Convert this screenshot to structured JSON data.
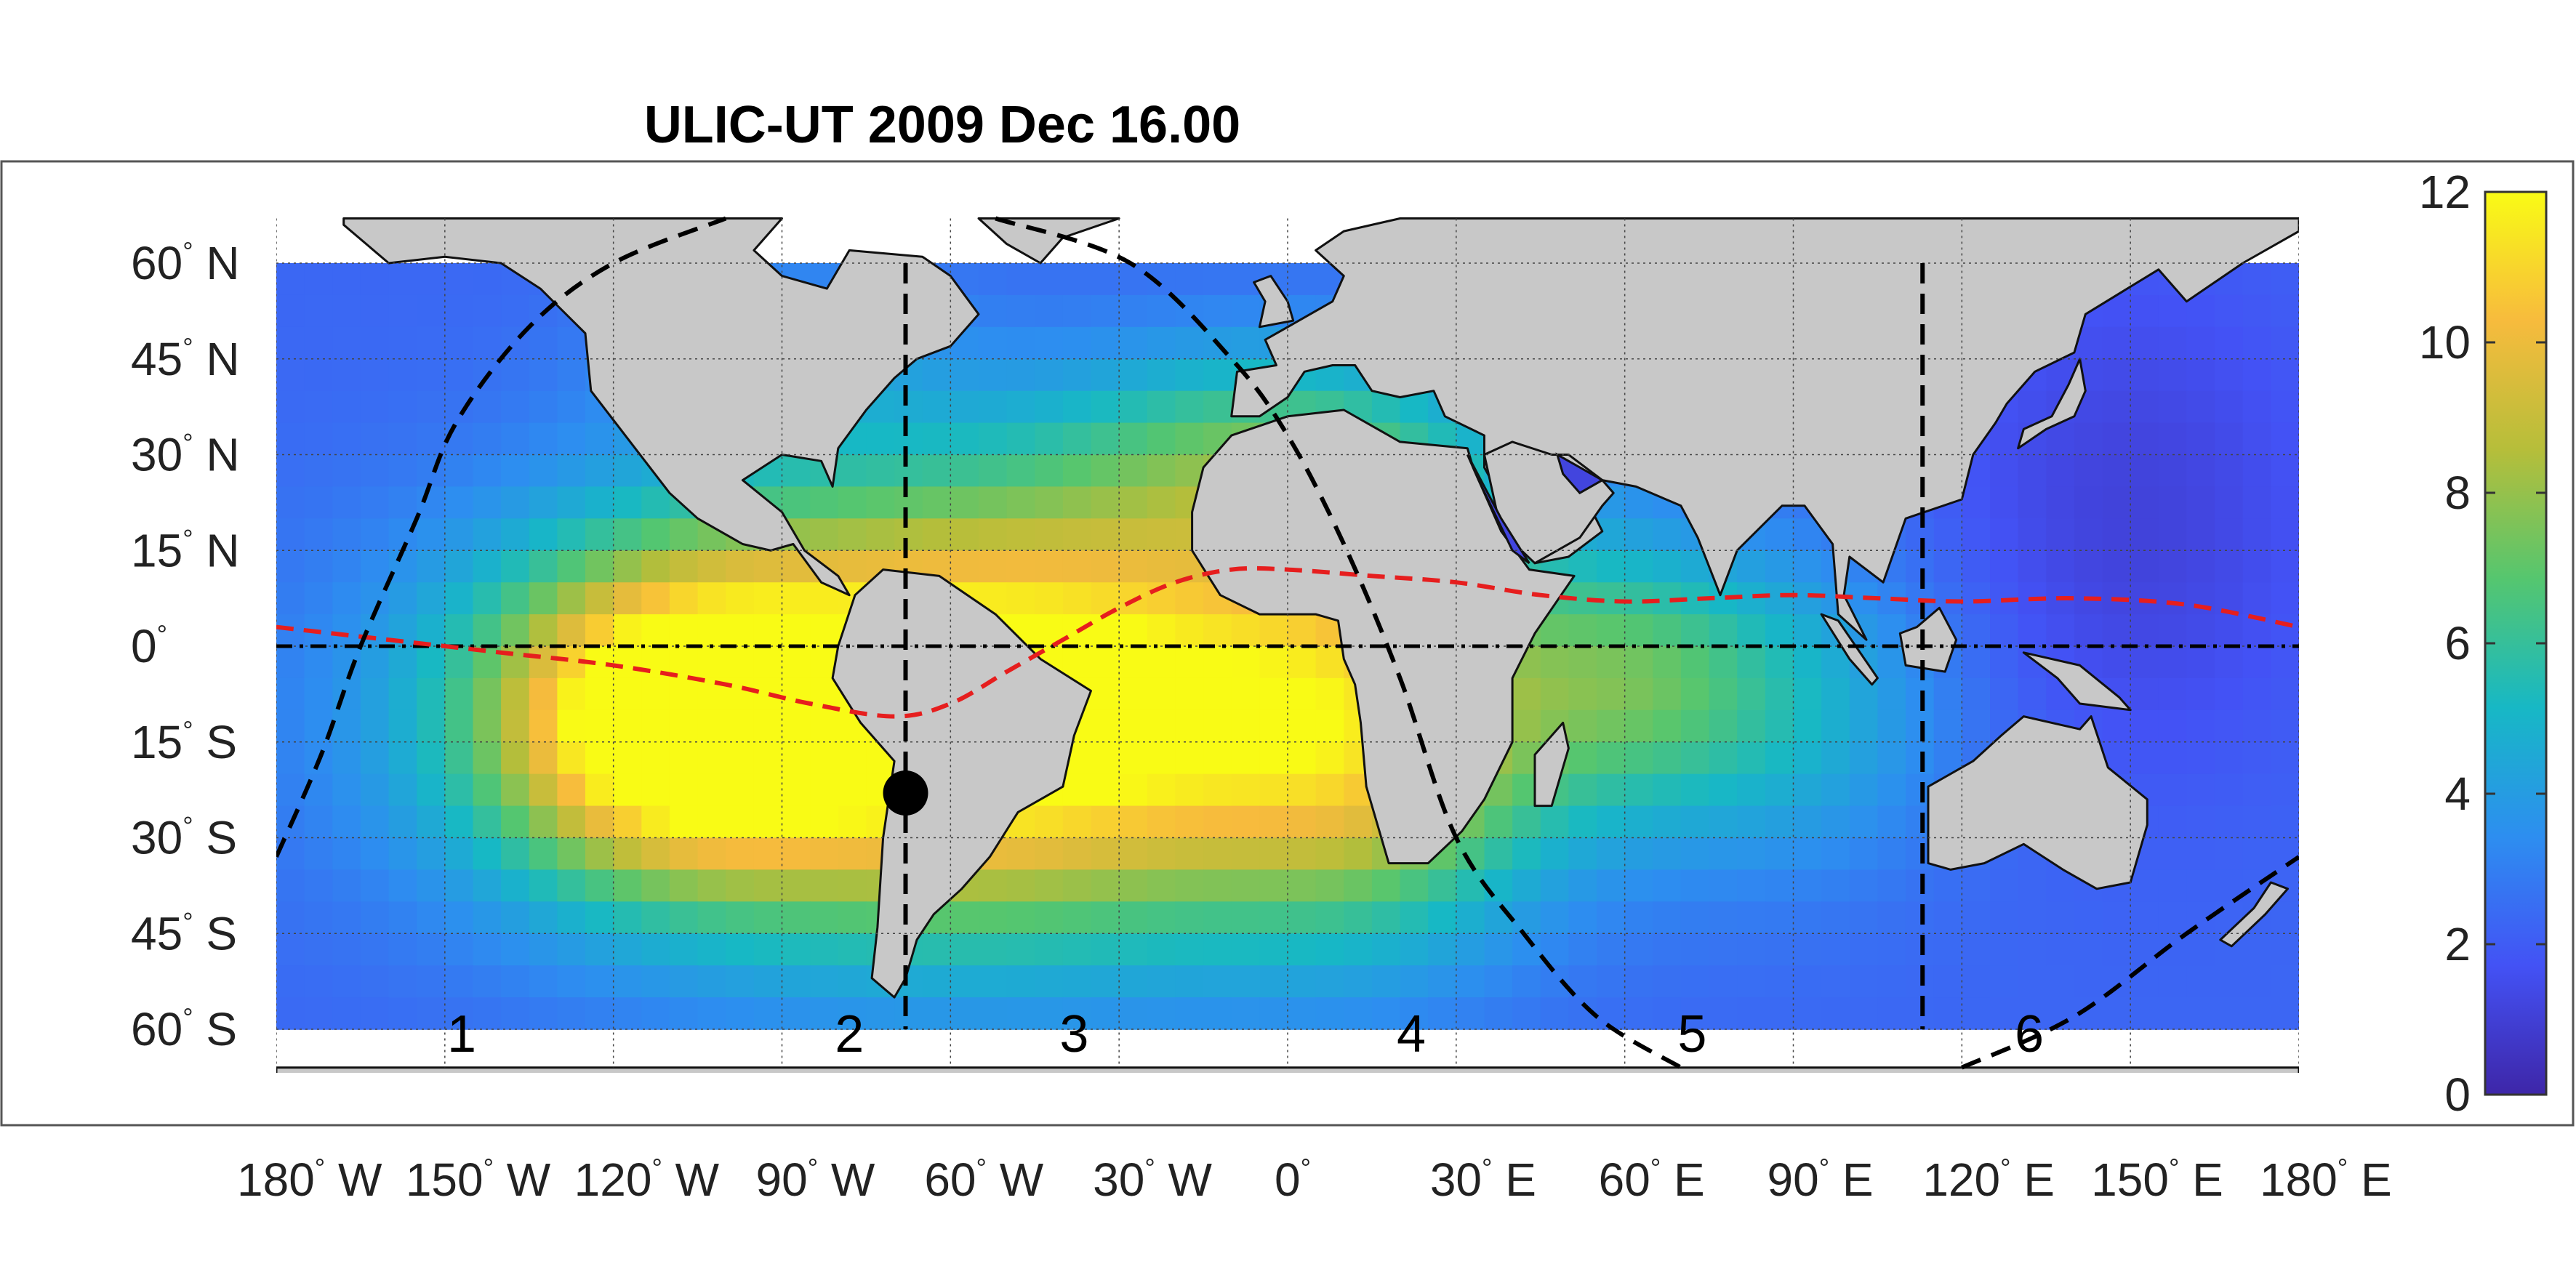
{
  "title": "ULIC-UT 2009 Dec 16.00",
  "lat_labels": [
    {
      "deg": "60",
      "hemi": "N",
      "value": 60
    },
    {
      "deg": "45",
      "hemi": "N",
      "value": 45
    },
    {
      "deg": "30",
      "hemi": "N",
      "value": 30
    },
    {
      "deg": "15",
      "hemi": "N",
      "value": 15
    },
    {
      "deg": "0",
      "hemi": "",
      "value": 0
    },
    {
      "deg": "15",
      "hemi": "S",
      "value": -15
    },
    {
      "deg": "30",
      "hemi": "S",
      "value": -30
    },
    {
      "deg": "45",
      "hemi": "S",
      "value": -45
    },
    {
      "deg": "60",
      "hemi": "S",
      "value": -60
    }
  ],
  "lon_labels": [
    {
      "deg": "180",
      "hemi": "W",
      "value": -180
    },
    {
      "deg": "150",
      "hemi": "W",
      "value": -150
    },
    {
      "deg": "120",
      "hemi": "W",
      "value": -120
    },
    {
      "deg": "90",
      "hemi": "W",
      "value": -90
    },
    {
      "deg": "60",
      "hemi": "W",
      "value": -60
    },
    {
      "deg": "30",
      "hemi": "W",
      "value": -30
    },
    {
      "deg": "0",
      "hemi": "",
      "value": 0
    },
    {
      "deg": "30",
      "hemi": "E",
      "value": 30
    },
    {
      "deg": "60",
      "hemi": "E",
      "value": 60
    },
    {
      "deg": "90",
      "hemi": "E",
      "value": 90
    },
    {
      "deg": "120",
      "hemi": "E",
      "value": 120
    },
    {
      "deg": "150",
      "hemi": "E",
      "value": 150
    },
    {
      "deg": "180",
      "hemi": "E",
      "value": 180
    }
  ],
  "zones": [
    {
      "label": "1",
      "lon": -147
    },
    {
      "label": "2",
      "lon": -78
    },
    {
      "label": "3",
      "lon": -38
    },
    {
      "label": "4",
      "lon": 22
    },
    {
      "label": "5",
      "lon": 72
    },
    {
      "label": "6",
      "lon": 132
    }
  ],
  "colorbar": {
    "min": 0,
    "max": 12,
    "ticks": [
      "0",
      "2",
      "4",
      "6",
      "8",
      "10",
      "12"
    ],
    "stops": [
      "#3e26a8",
      "#4352f5",
      "#2d8ef0",
      "#17b8c5",
      "#55c66f",
      "#b6be3a",
      "#f7bb3d",
      "#f9fb15"
    ]
  },
  "colors": {
    "land": "#c8c8c8",
    "equator_line": "#000000",
    "magnetic_equator": "#e61e1e",
    "terminator": "#000000",
    "meridian_lines": "#000000"
  },
  "map_data": {
    "data_lat_range": [
      -60,
      60
    ],
    "display_lat_range": [
      -66,
      67
    ],
    "lon_range": [
      -180,
      180
    ],
    "meridian_lines_lon": [
      -68,
      113
    ],
    "marker": {
      "lon": -68,
      "lat": -23
    },
    "magnetic_equator": [
      [
        -180,
        3
      ],
      [
        -160,
        1
      ],
      [
        -140,
        -1
      ],
      [
        -120,
        -3
      ],
      [
        -100,
        -6
      ],
      [
        -85,
        -9
      ],
      [
        -70,
        -11
      ],
      [
        -60,
        -9
      ],
      [
        -50,
        -4
      ],
      [
        -40,
        1
      ],
      [
        -30,
        6
      ],
      [
        -20,
        10
      ],
      [
        -10,
        12
      ],
      [
        0,
        12
      ],
      [
        15,
        11
      ],
      [
        30,
        10
      ],
      [
        45,
        8
      ],
      [
        60,
        7
      ],
      [
        75,
        7.5
      ],
      [
        90,
        8
      ],
      [
        105,
        7.5
      ],
      [
        120,
        7
      ],
      [
        140,
        7.5
      ],
      [
        160,
        6.5
      ],
      [
        180,
        3
      ]
    ],
    "terminator_west": [
      [
        -180,
        -33
      ],
      [
        -172,
        -17
      ],
      [
        -165,
        0
      ],
      [
        -155,
        20
      ],
      [
        -148,
        35
      ],
      [
        -135,
        50
      ],
      [
        -120,
        60
      ],
      [
        -100,
        67
      ]
    ],
    "terminator_mid": [
      [
        -52,
        67
      ],
      [
        -28,
        60
      ],
      [
        -10,
        45
      ],
      [
        0,
        33
      ],
      [
        10,
        16
      ],
      [
        20,
        -5
      ],
      [
        30,
        -30
      ],
      [
        42,
        -45
      ],
      [
        55,
        -58
      ],
      [
        70,
        -66
      ]
    ],
    "terminator_east": [
      [
        120,
        -66
      ],
      [
        140,
        -58
      ],
      [
        160,
        -45
      ],
      [
        180,
        -33
      ]
    ]
  }
}
